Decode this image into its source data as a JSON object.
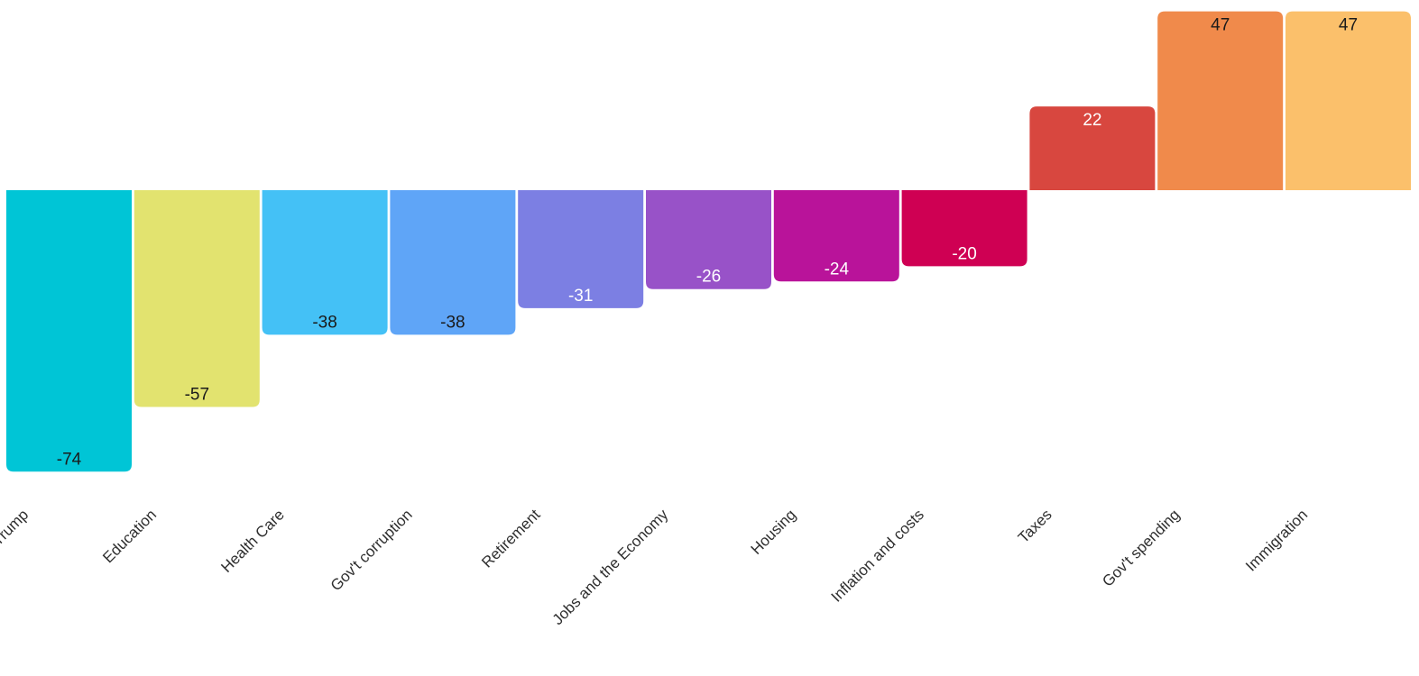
{
  "chart_data": {
    "type": "bar",
    "categories": [
      "Trump",
      "Education",
      "Health Care",
      "Gov't corruption",
      "Retirement",
      "Jobs and the Economy",
      "Housing",
      "Inflation and costs",
      "Taxes",
      "Gov't spending",
      "Immigration"
    ],
    "values": [
      -74,
      -57,
      -38,
      -38,
      -31,
      -26,
      -24,
      -20,
      22,
      47,
      47
    ],
    "value_labels": [
      "-74",
      "-57",
      "-38",
      "-38",
      "-31",
      "-26",
      "-24",
      "-20",
      "22",
      "47",
      "47"
    ],
    "bar_colors": [
      "#00c5d6",
      "#e2e36f",
      "#44c1f6",
      "#5fa5f7",
      "#7c7fe3",
      "#9852c8",
      "#b9139a",
      "#cf0053",
      "#d8473f",
      "#f08a4b",
      "#fbc06b"
    ],
    "label_colors": [
      "#1a1a1a",
      "#1a1a1a",
      "#1a1a1a",
      "#1a1a1a",
      "#ffffff",
      "#ffffff",
      "#ffffff",
      "#ffffff",
      "#ffffff",
      "#1a1a1a",
      "#1a1a1a"
    ],
    "ylim": [
      -74,
      47
    ],
    "title": "",
    "xlabel": "",
    "ylabel": "",
    "grid": false,
    "legend": false
  }
}
